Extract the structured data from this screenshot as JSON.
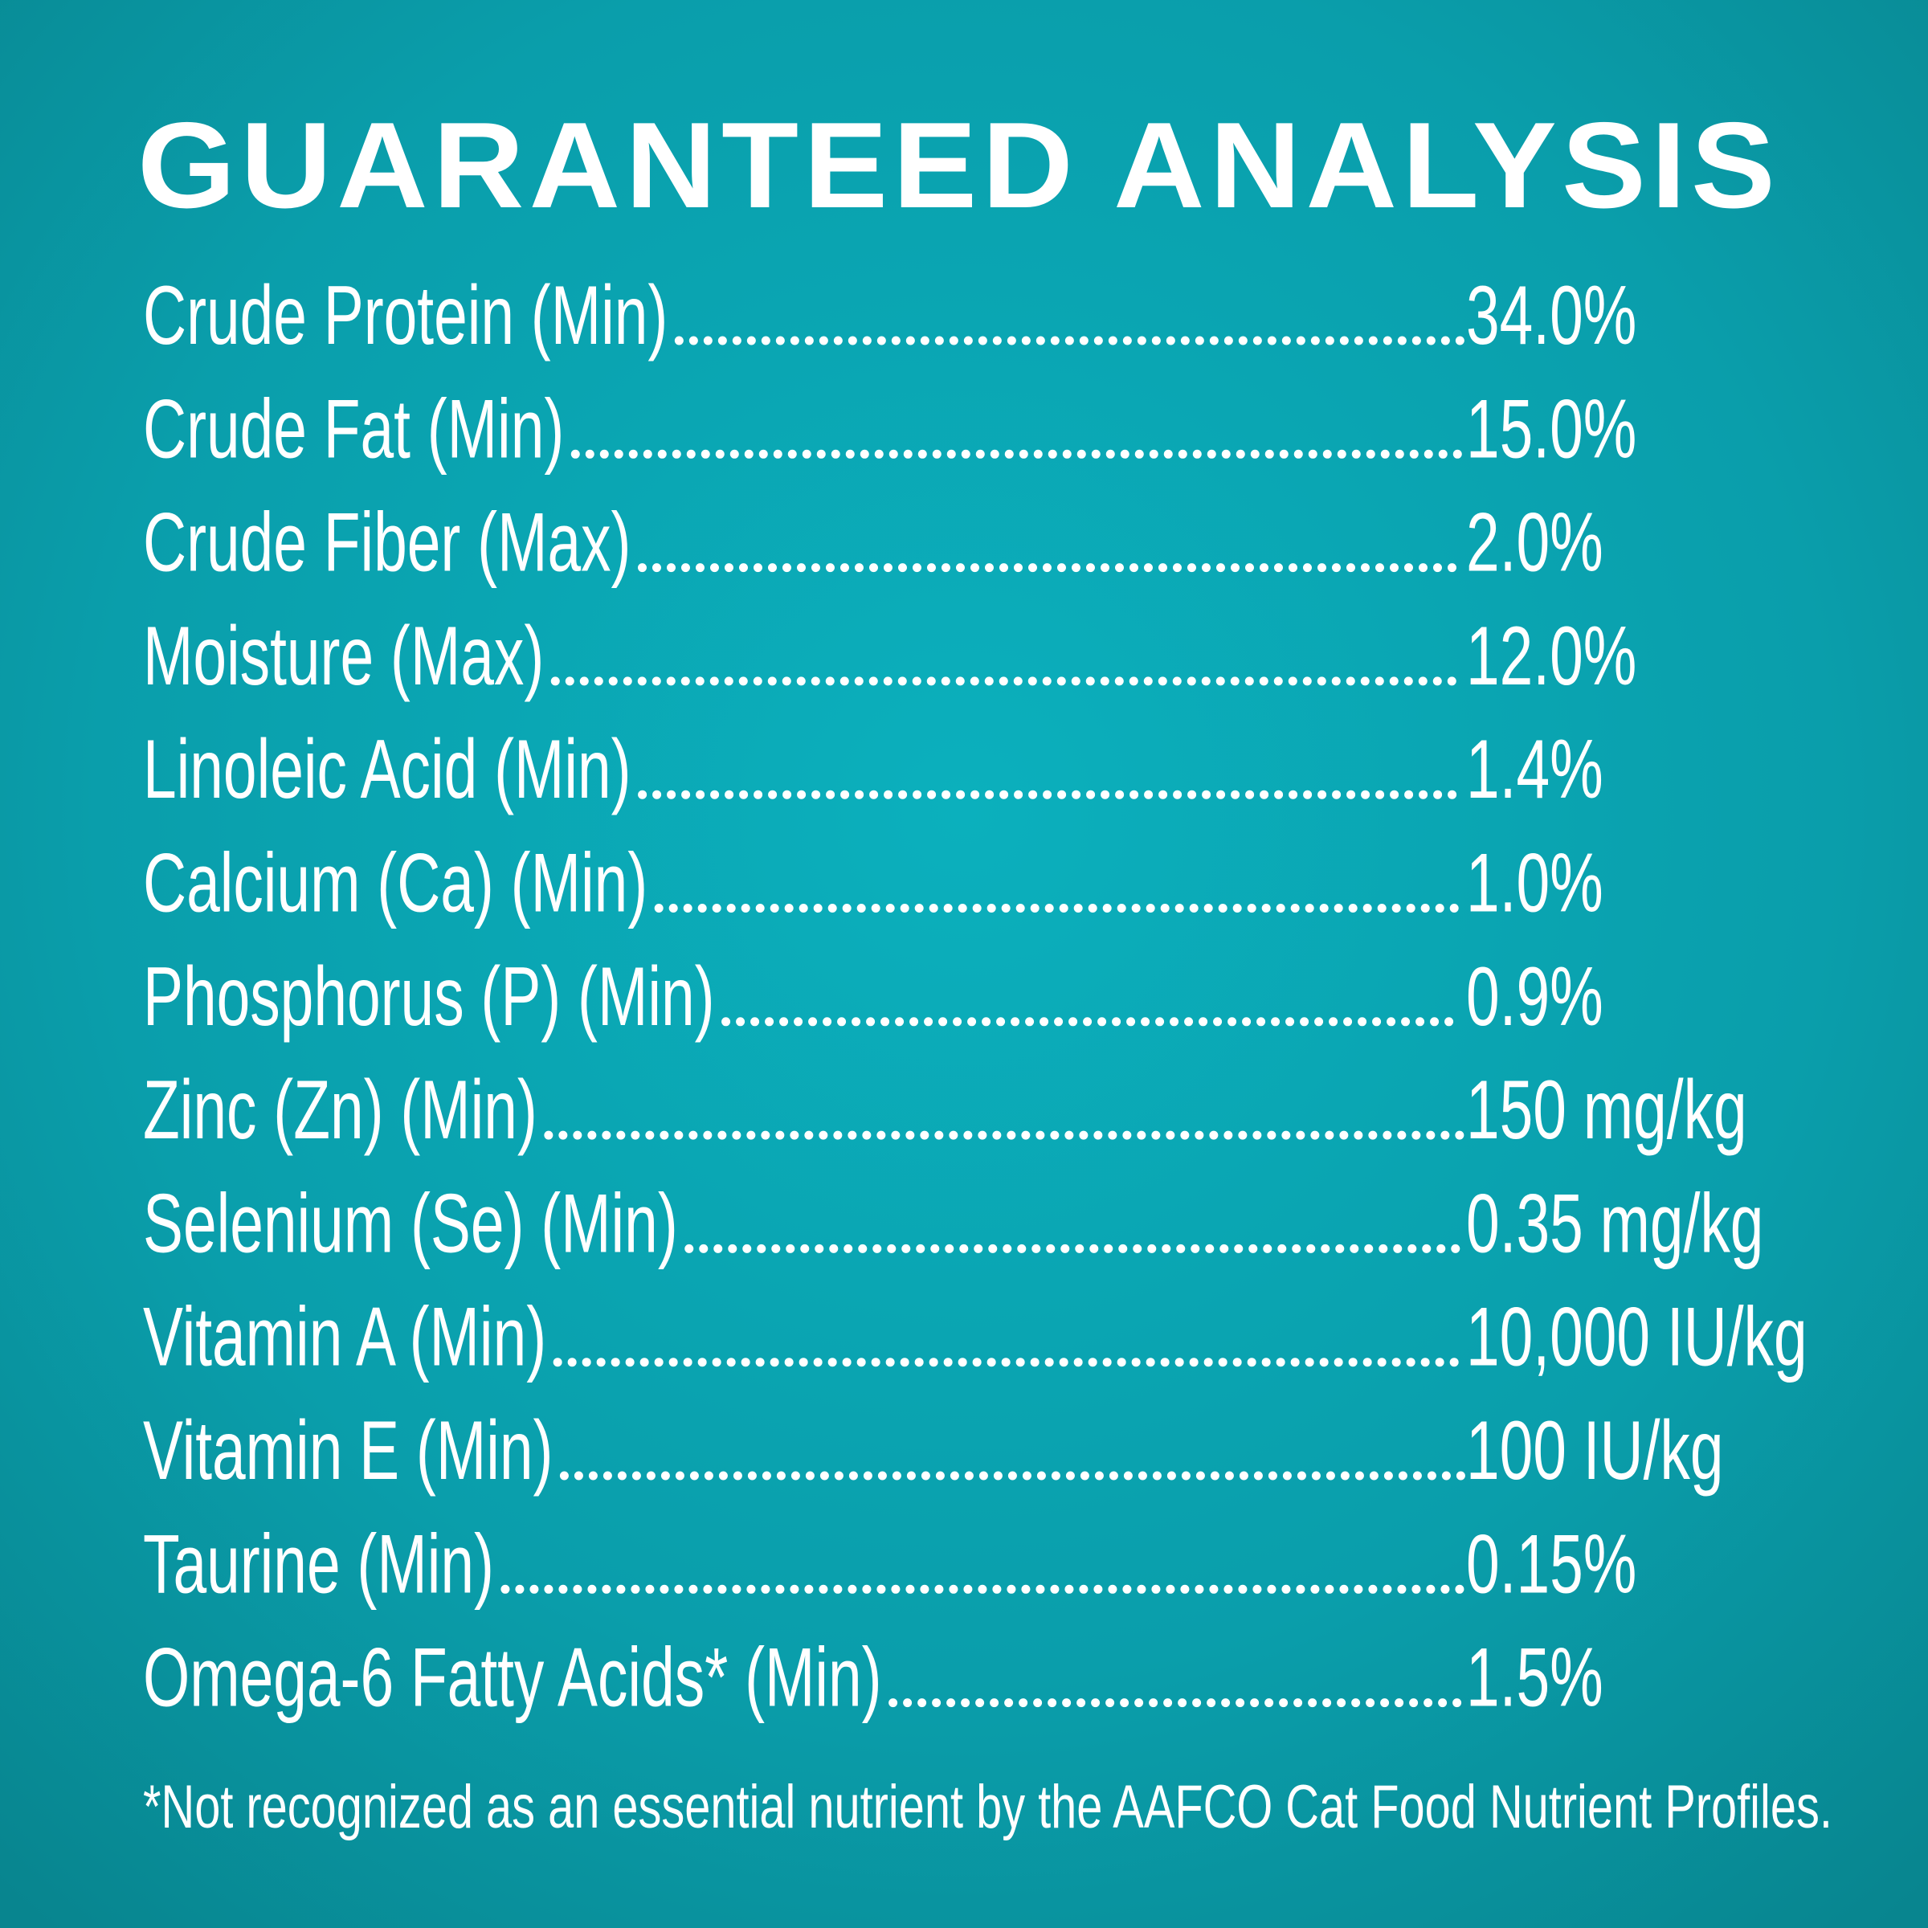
{
  "title": "GUARANTEED ANALYSIS",
  "rows": [
    {
      "label": "Crude Protein (Min)",
      "value": "34.0%"
    },
    {
      "label": "Crude Fat (Min)",
      "value": "15.0%"
    },
    {
      "label": "Crude Fiber (Max)",
      "value": "2.0%"
    },
    {
      "label": "Moisture (Max)",
      "value": "12.0%"
    },
    {
      "label": "Linoleic Acid (Min)",
      "value": "1.4%"
    },
    {
      "label": "Calcium (Ca) (Min)",
      "value": "1.0%"
    },
    {
      "label": "Phosphorus (P) (Min)",
      "value": "0.9%"
    },
    {
      "label": "Zinc (Zn) (Min)",
      "value": "150 mg/kg"
    },
    {
      "label": "Selenium (Se) (Min)",
      "value": "0.35 mg/kg"
    },
    {
      "label": "Vitamin A (Min)",
      "value": "10,000 IU/kg"
    },
    {
      "label": "Vitamin E (Min)",
      "value": "100 IU/kg"
    },
    {
      "label": "Taurine (Min)",
      "value": "0.15%"
    },
    {
      "label": "Omega-6 Fatty Acids* (Min)",
      "value": "1.5%"
    }
  ],
  "footnote": "*Not recognized as an essential nutrient by the AAFCO Cat Food Nutrient Profiles."
}
